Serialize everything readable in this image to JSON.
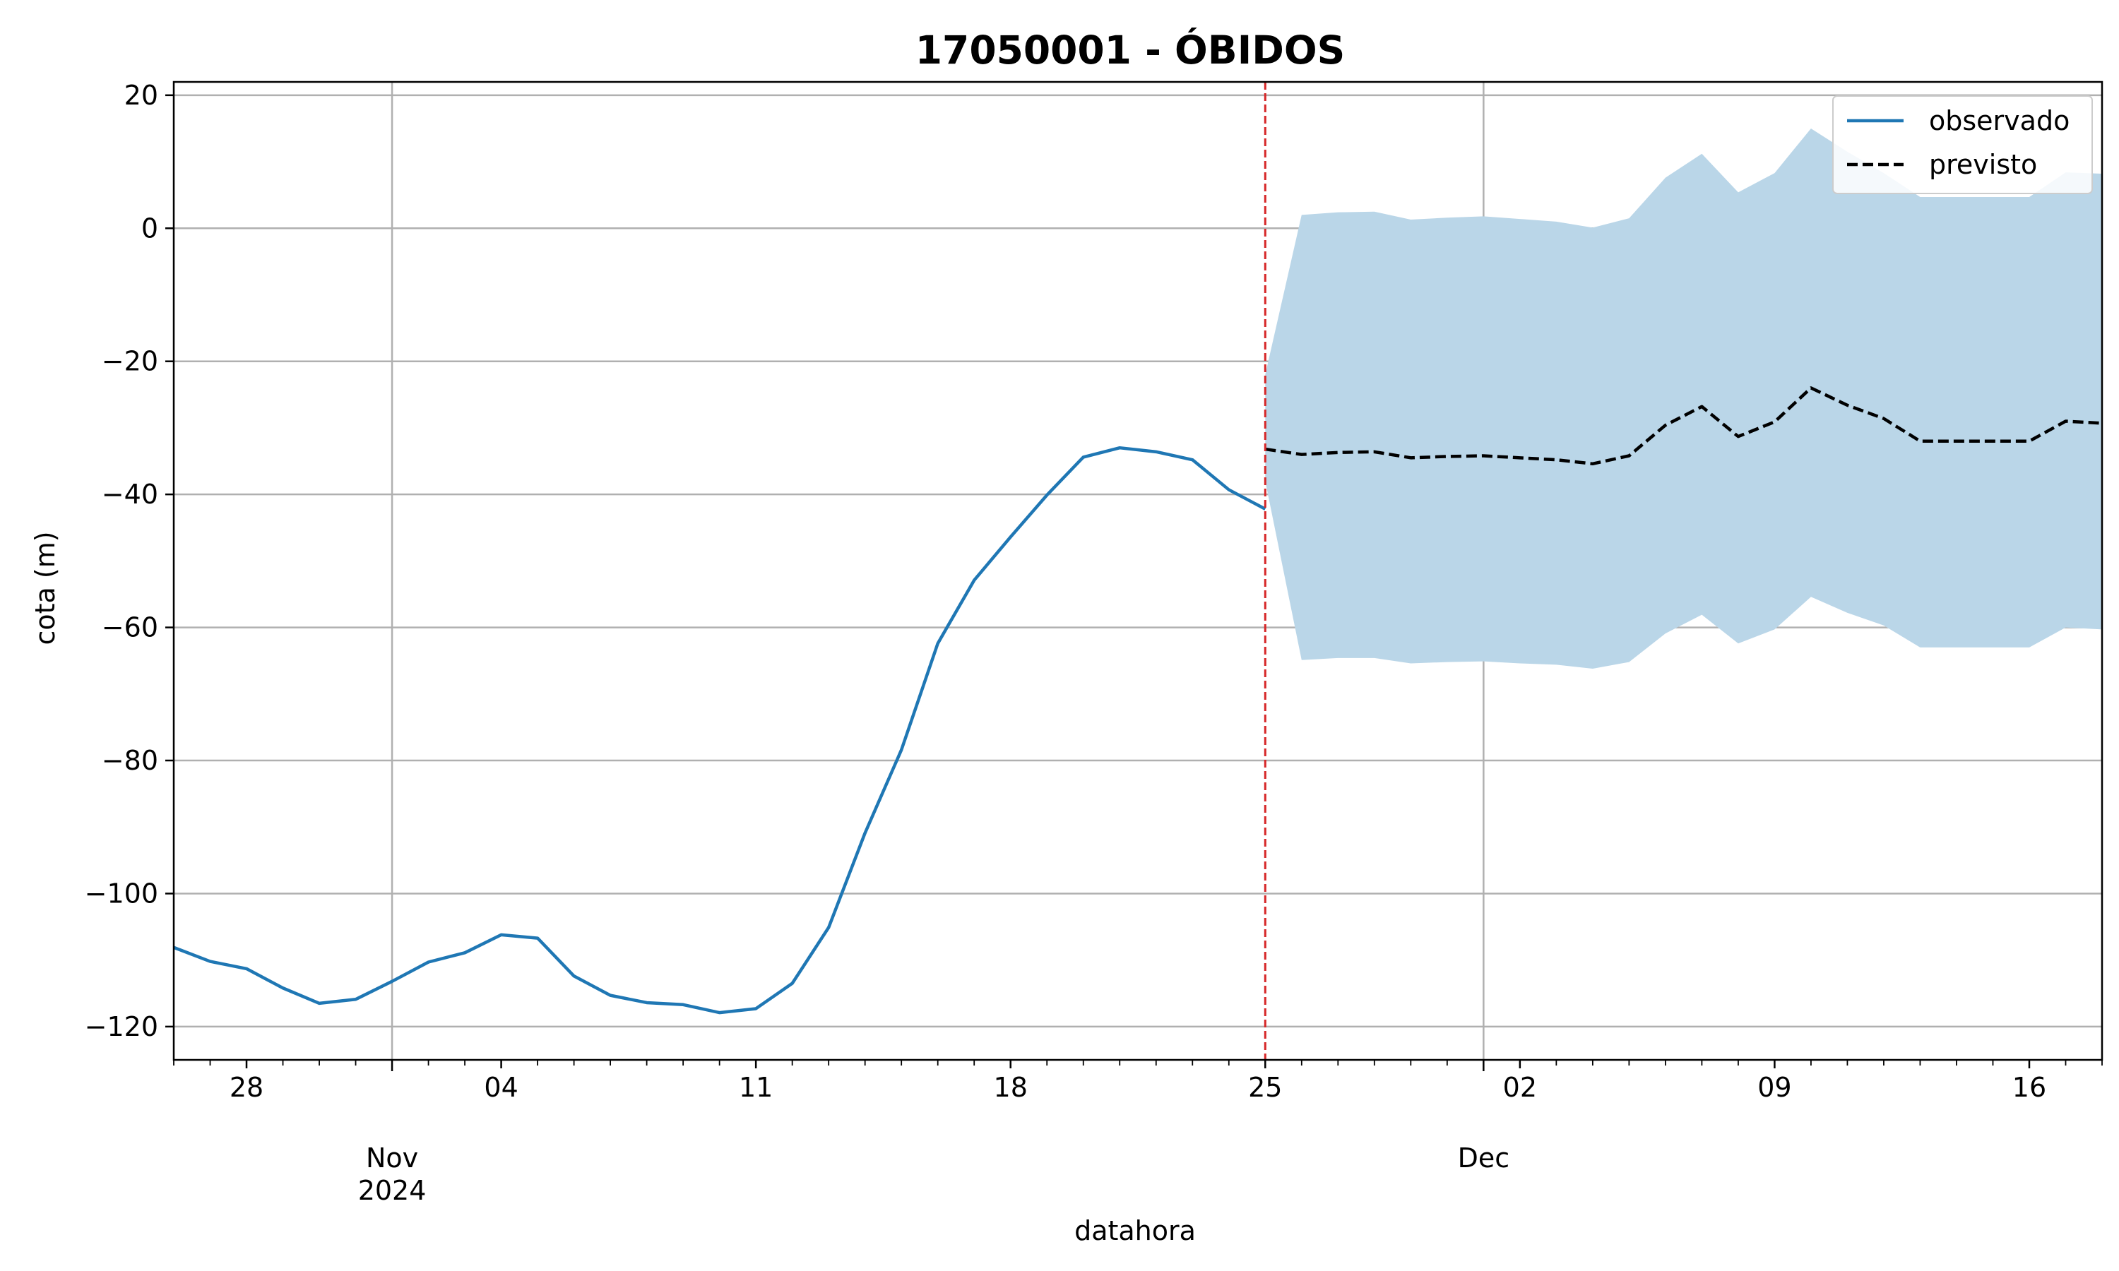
{
  "chart_data": {
    "type": "line",
    "title": "17050001 - ÓBIDOS",
    "xlabel": "datahora",
    "ylabel": "cota (m)",
    "xlim": [
      "2024-10-26",
      "2024-12-18"
    ],
    "ylim": [
      -125,
      22
    ],
    "grid": true,
    "legend_position": "top-right",
    "y_ticks": [
      20,
      0,
      -20,
      -40,
      -60,
      -80,
      -100,
      -120
    ],
    "y_tick_labels": [
      "20",
      "0",
      "−20",
      "−40",
      "−60",
      "−80",
      "−100",
      "−120"
    ],
    "x_day_ticks": [
      {
        "date": "2024-10-28",
        "label": "28"
      },
      {
        "date": "2024-11-04",
        "label": "04"
      },
      {
        "date": "2024-11-11",
        "label": "11"
      },
      {
        "date": "2024-11-18",
        "label": "18"
      },
      {
        "date": "2024-11-25",
        "label": "25"
      },
      {
        "date": "2024-12-02",
        "label": "02"
      },
      {
        "date": "2024-12-09",
        "label": "09"
      },
      {
        "date": "2024-12-16",
        "label": "16"
      }
    ],
    "x_month_ticks": [
      {
        "date": "2024-11-01",
        "label": "Nov",
        "sublabel": "2024"
      },
      {
        "date": "2024-12-01",
        "label": "Dec",
        "sublabel": ""
      }
    ],
    "forecast_start": "2024-11-25",
    "series": [
      {
        "name": "observado",
        "color": "#1f77b4",
        "style": "solid",
        "x": [
          "2024-10-26",
          "2024-10-27",
          "2024-10-28",
          "2024-10-29",
          "2024-10-30",
          "2024-10-31",
          "2024-11-01",
          "2024-11-02",
          "2024-11-03",
          "2024-11-04",
          "2024-11-05",
          "2024-11-06",
          "2024-11-07",
          "2024-11-08",
          "2024-11-09",
          "2024-11-10",
          "2024-11-11",
          "2024-11-12",
          "2024-11-13",
          "2024-11-14",
          "2024-11-15",
          "2024-11-16",
          "2024-11-17",
          "2024-11-18",
          "2024-11-19",
          "2024-11-20",
          "2024-11-21",
          "2024-11-22",
          "2024-11-23",
          "2024-11-24",
          "2024-11-25"
        ],
        "values": [
          -108.1,
          -110.2,
          -111.3,
          -114.2,
          -116.5,
          -115.9,
          -113.2,
          -110.3,
          -108.9,
          -106.2,
          -106.7,
          -112.4,
          -115.3,
          -116.4,
          -116.7,
          -117.9,
          -117.3,
          -113.5,
          -105.1,
          -90.9,
          -78.4,
          -62.4,
          -52.9,
          -46.4,
          -40.1,
          -34.4,
          -33.0,
          -33.6,
          -34.8,
          -39.3,
          -42.2
        ]
      },
      {
        "name": "previsto",
        "color": "#000000",
        "style": "dashed",
        "x": [
          "2024-11-25",
          "2024-11-26",
          "2024-11-27",
          "2024-11-28",
          "2024-11-29",
          "2024-11-30",
          "2024-12-01",
          "2024-12-02",
          "2024-12-03",
          "2024-12-04",
          "2024-12-05",
          "2024-12-06",
          "2024-12-07",
          "2024-12-08",
          "2024-12-09",
          "2024-12-10",
          "2024-12-11",
          "2024-12-12",
          "2024-12-13",
          "2024-12-14",
          "2024-12-15",
          "2024-12-16",
          "2024-12-17",
          "2024-12-18"
        ],
        "values": [
          -33.2,
          -34.0,
          -33.7,
          -33.6,
          -34.5,
          -34.3,
          -34.2,
          -34.5,
          -34.8,
          -35.4,
          -34.2,
          -29.6,
          -26.8,
          -31.3,
          -29.1,
          -24.0,
          -26.6,
          -28.6,
          -32.0,
          -32.0,
          -32.0,
          -32.0,
          -29.0,
          -29.3
        ]
      }
    ],
    "band": {
      "color": "#bad6e8",
      "x": [
        "2024-11-25",
        "2024-11-26",
        "2024-11-27",
        "2024-11-28",
        "2024-11-29",
        "2024-11-30",
        "2024-12-01",
        "2024-12-02",
        "2024-12-03",
        "2024-12-04",
        "2024-12-05",
        "2024-12-06",
        "2024-12-07",
        "2024-12-08",
        "2024-12-09",
        "2024-12-10",
        "2024-12-11",
        "2024-12-12",
        "2024-12-13",
        "2024-12-14",
        "2024-12-15",
        "2024-12-16",
        "2024-12-17",
        "2024-12-18"
      ],
      "upper": [
        -22.0,
        2.0,
        2.4,
        2.5,
        1.3,
        1.6,
        1.8,
        1.4,
        1.0,
        0.1,
        1.5,
        7.6,
        11.2,
        5.4,
        8.3,
        15.0,
        11.5,
        8.3,
        4.7,
        4.7,
        4.7,
        4.7,
        8.4,
        8.2
      ],
      "lower": [
        -38.0,
        -64.9,
        -64.6,
        -64.6,
        -65.4,
        -65.2,
        -65.1,
        -65.4,
        -65.6,
        -66.2,
        -65.2,
        -60.9,
        -58.1,
        -62.4,
        -60.3,
        -55.4,
        -57.8,
        -59.7,
        -63.0,
        -63.0,
        -63.0,
        -63.0,
        -60.0,
        -60.3
      ]
    },
    "forecast_line_color": "#d62728"
  }
}
